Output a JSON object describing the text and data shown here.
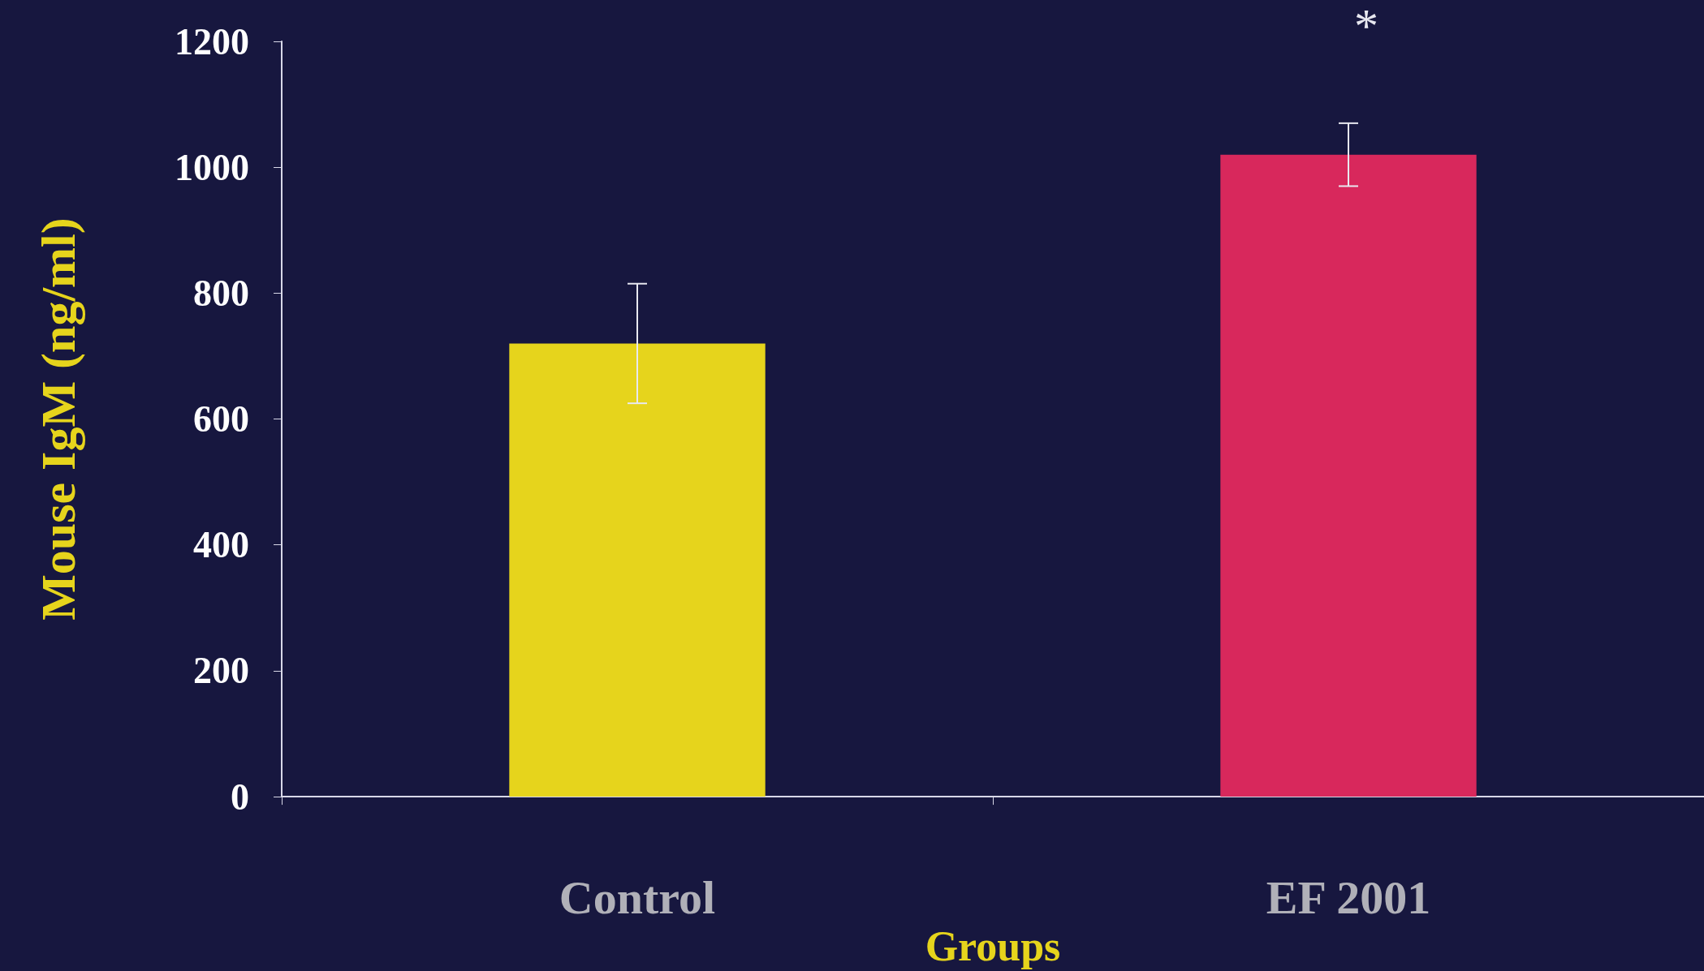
{
  "chart_data": {
    "type": "bar",
    "xlabel": "Groups",
    "ylabel": "Mouse IgM (ng/ml)",
    "categories": [
      "Control",
      "EF 2001"
    ],
    "values": [
      720,
      1020
    ],
    "colors": [
      "#e6d41c",
      "#d8285c"
    ],
    "errors": [
      95,
      50
    ],
    "ylim": [
      0,
      1200
    ],
    "yticks": [
      0,
      200,
      400,
      600,
      800,
      1000,
      1200
    ],
    "grid": false,
    "annotations": [
      "*"
    ]
  }
}
